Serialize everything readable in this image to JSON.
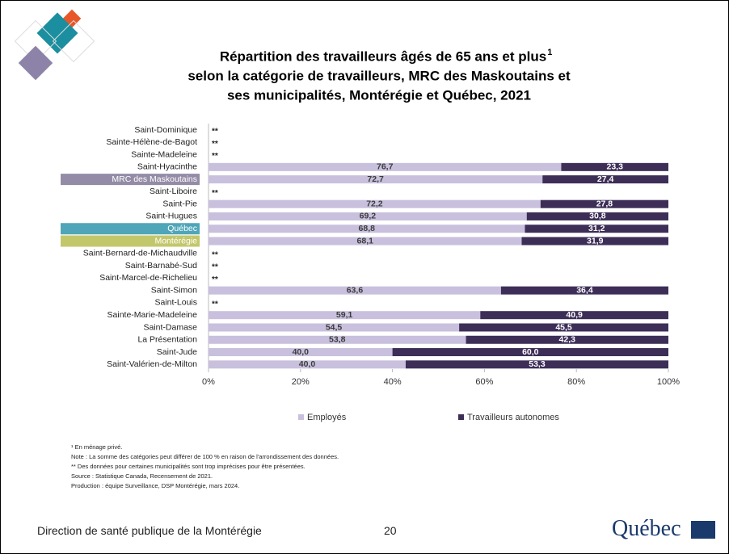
{
  "chart_data": {
    "type": "bar",
    "stack": "percent",
    "orientation": "horizontal",
    "title_lines": [
      "Répartition des travailleurs âgés de 65 ans et plus",
      "selon la catégorie de travailleurs, MRC des Maskoutains et",
      "ses municipalités, Montérégie et Québec, 2021"
    ],
    "title_note_marker": "1",
    "categories": [
      "Saint-Dominique",
      "Sainte-Hélène-de-Bagot",
      "Sainte-Madeleine",
      "Saint-Hyacinthe",
      "MRC des Maskoutains",
      "Saint-Liboire",
      "Saint-Pie",
      "Saint-Hugues",
      "Québec",
      "Montérégie",
      "Saint-Bernard-de-Michaudville",
      "Saint-Barnabé-Sud",
      "Saint-Marcel-de-Richelieu",
      "Saint-Simon",
      "Saint-Louis",
      "Sainte-Marie-Madeleine",
      "Saint-Damase",
      "La Présentation",
      "Saint-Jude",
      "Saint-Valérien-de-Milton"
    ],
    "label_backgrounds": [
      null,
      null,
      null,
      null,
      "#948ca6",
      null,
      null,
      null,
      "#4fa6b8",
      "#c3c76c",
      null,
      null,
      null,
      null,
      null,
      null,
      null,
      null,
      null,
      null
    ],
    "series": [
      {
        "name": "Employés",
        "color": "#c8c0dd",
        "label_color": "#3b3b3b",
        "values": [
          null,
          null,
          null,
          76.7,
          72.7,
          null,
          72.2,
          69.2,
          68.8,
          68.1,
          null,
          null,
          null,
          63.6,
          null,
          59.1,
          54.5,
          53.8,
          40,
          40
        ],
        "value_labels": [
          "**",
          "**",
          "**",
          "76,7",
          "72,7",
          "**",
          "72,2",
          "69,2",
          "68,8",
          "68,1",
          "**",
          "**",
          "**",
          "63,6",
          "**",
          "59,1",
          "54,5",
          "53,8",
          "40,0",
          "40,0"
        ]
      },
      {
        "name": "Travailleurs autonomes",
        "color": "#3d2e57",
        "label_color": "#ffffff",
        "values": [
          null,
          null,
          null,
          23.3,
          27.4,
          null,
          27.8,
          30.8,
          31.2,
          31.9,
          null,
          null,
          null,
          36.4,
          null,
          40.9,
          45.5,
          42.3,
          60,
          53.3
        ],
        "value_labels": [
          null,
          null,
          null,
          "23,3",
          "27,4",
          null,
          "27,8",
          "30,8",
          "31,2",
          "31,9",
          null,
          null,
          null,
          "36,4",
          null,
          "40,9",
          "45,5",
          "42,3",
          "60,0",
          "53,3"
        ]
      }
    ],
    "xlim": [
      0,
      100
    ],
    "xticks": [
      {
        "value": 0,
        "label": "0%"
      },
      {
        "value": 20,
        "label": "20%"
      },
      {
        "value": 40,
        "label": "40%"
      },
      {
        "value": 60,
        "label": "60%"
      },
      {
        "value": 80,
        "label": "80%"
      },
      {
        "value": 100,
        "label": "100%"
      }
    ],
    "legend": "bottom"
  },
  "footnotes": [
    "¹ En ménage privé.",
    "Note : La somme des catégories peut différer de 100 % en raison de l'arrondissement des données.",
    "**  Des données pour certaines municipalités sont trop imprécises pour être présentées.",
    "Source : Statistique Canada, Recensement de 2021.",
    "Production : équipe Surveillance, DSP Montérégie, mars 2024."
  ],
  "footer": {
    "organization": "Direction de santé publique de la Montérégie",
    "page": "20",
    "logo": "Québec"
  }
}
